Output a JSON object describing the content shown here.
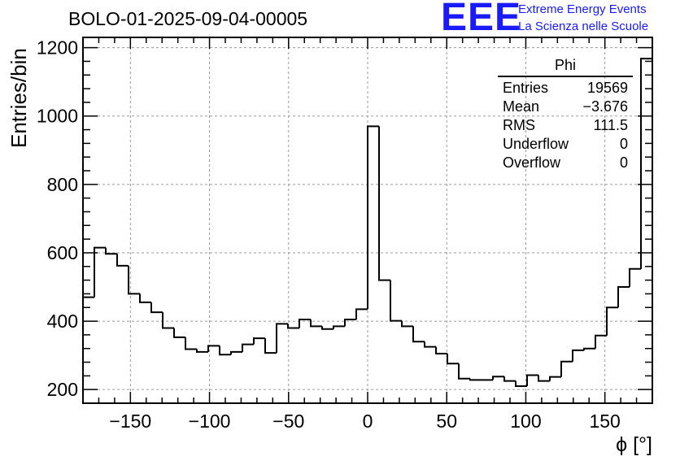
{
  "header": {
    "title": "BOLO-01-2025-09-04-00005",
    "logo_text": "EEE",
    "logo_line1": "Extreme Energy Events",
    "logo_line2": "La Scienza nelle Scuole"
  },
  "stats_box": {
    "title": "Phi",
    "rows": [
      {
        "label": "Entries",
        "value": "19569"
      },
      {
        "label": "Mean",
        "value": "−3.676"
      },
      {
        "label": "RMS",
        "value": "111.5"
      },
      {
        "label": "Underflow",
        "value": "0"
      },
      {
        "label": "Overflow",
        "value": "0"
      }
    ]
  },
  "chart_data": {
    "type": "bar",
    "style": "step-histogram",
    "title": "BOLO-01-2025-09-04-00005",
    "xlabel": "ϕ [°]",
    "ylabel": "Entries/bin",
    "xlim": [
      -180,
      180
    ],
    "ylim": [
      160,
      1230
    ],
    "bin_width": 7.2,
    "xticks": [
      -150,
      -100,
      -50,
      0,
      50,
      100,
      150
    ],
    "xtick_labels": [
      "−150",
      "−100",
      "−50",
      "0",
      "50",
      "100",
      "150"
    ],
    "yticks": [
      200,
      400,
      600,
      800,
      1000,
      1200
    ],
    "ytick_labels": [
      "200",
      "400",
      "600",
      "800",
      "1000",
      "1200"
    ],
    "grid": true,
    "line_color": "#000000",
    "bin_edges_start": -180,
    "values": [
      470,
      615,
      597,
      562,
      480,
      455,
      426,
      380,
      353,
      318,
      310,
      328,
      302,
      310,
      332,
      350,
      307,
      392,
      380,
      405,
      385,
      377,
      385,
      405,
      435,
      970,
      520,
      401,
      385,
      340,
      325,
      305,
      276,
      232,
      228,
      228,
      238,
      225,
      210,
      242,
      225,
      237,
      282,
      315,
      320,
      358,
      440,
      500,
      553,
      1168
    ]
  }
}
